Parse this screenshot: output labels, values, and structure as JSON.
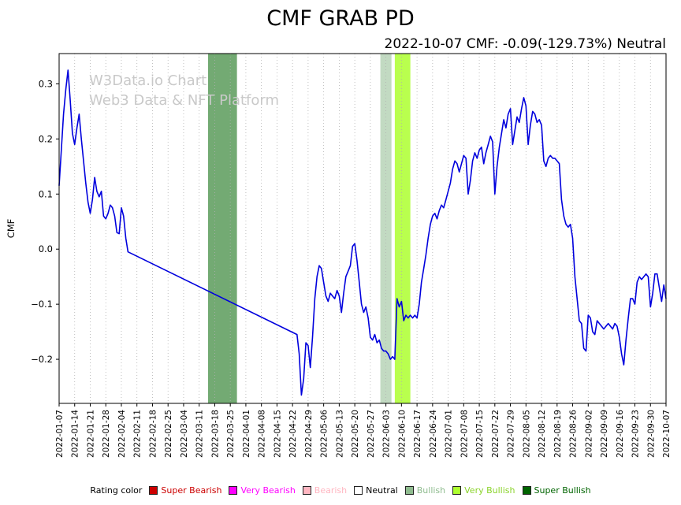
{
  "header": {
    "title": "CMF GRAB PD",
    "subtitle": "2022-10-07 CMF: -0.09(-129.73%) Neutral"
  },
  "watermark": {
    "line1": "W3Data.io Chart",
    "line2": "Web3 Data & NFT Platform",
    "color": "#c9c9c9"
  },
  "legend": {
    "label": "Rating color",
    "items": [
      {
        "label": "Super Bearish",
        "color": "#cc0000",
        "text_color": "#cc0000"
      },
      {
        "label": "Very Bearish",
        "color": "#ff00ff",
        "text_color": "#ff00ff"
      },
      {
        "label": "Bearish",
        "color": "#ffb6c1",
        "text_color": "#ffb6c1"
      },
      {
        "label": "Neutral",
        "color": "#ffffff",
        "text_color": "#000000"
      },
      {
        "label": "Bullish",
        "color": "#8fbc8f",
        "text_color": "#8fbc8f"
      },
      {
        "label": "Very Bullish",
        "color": "#adff2f",
        "text_color": "#8ad32a"
      },
      {
        "label": "Super Bullish",
        "color": "#006400",
        "text_color": "#006400"
      }
    ]
  },
  "chart_data": {
    "type": "line",
    "title": "CMF GRAB PD",
    "xlabel": "",
    "ylabel": "CMF",
    "line_color": "#0000dd",
    "grid": "vertical-dotted",
    "grid_color": "#b0b0b0",
    "ylim": [
      -0.28,
      0.355
    ],
    "y_ticks": [
      0.3,
      0.2,
      0.1,
      0.0,
      -0.1,
      -0.2
    ],
    "y_tick_labels": [
      "0.3",
      "0.2",
      "0.1",
      "0.0",
      "−0.1",
      "−0.2"
    ],
    "x_tick_interval_days": 7,
    "x_tick_labels": [
      "2022-01-07",
      "2022-01-14",
      "2022-01-21",
      "2022-01-28",
      "2022-02-04",
      "2022-02-11",
      "2022-02-18",
      "2022-02-25",
      "2022-03-04",
      "2022-03-11",
      "2022-03-18",
      "2022-03-25",
      "2022-04-01",
      "2022-04-08",
      "2022-04-15",
      "2022-04-22",
      "2022-04-29",
      "2022-05-06",
      "2022-05-13",
      "2022-05-20",
      "2022-05-27",
      "2022-06-03",
      "2022-06-10",
      "2022-06-17",
      "2022-06-24",
      "2022-07-01",
      "2022-07-08",
      "2022-07-15",
      "2022-07-22",
      "2022-07-29",
      "2022-08-05",
      "2022-08-12",
      "2022-08-19",
      "2022-08-26",
      "2022-09-02",
      "2022-09-09",
      "2022-09-16",
      "2022-09-23",
      "2022-09-30",
      "2022-10-07"
    ],
    "bands": [
      {
        "rating": "Super Bullish",
        "from_day": 67,
        "to_day": 80,
        "color": "rgba(0,100,0,0.55)"
      },
      {
        "rating": "Bullish",
        "from_day": 144.5,
        "to_day": 149.5,
        "color": "rgba(143,188,143,0.55)"
      },
      {
        "rating": "Very Bullish",
        "from_day": 151,
        "to_day": 158,
        "color": "rgba(173,255,47,0.85)"
      }
    ],
    "series": [
      {
        "name": "CMF",
        "points": [
          [
            0,
            0.115
          ],
          [
            1,
            0.18
          ],
          [
            2,
            0.245
          ],
          [
            3,
            0.29
          ],
          [
            4,
            0.325
          ],
          [
            5,
            0.27
          ],
          [
            6,
            0.21
          ],
          [
            7,
            0.19
          ],
          [
            8,
            0.22
          ],
          [
            9,
            0.245
          ],
          [
            10,
            0.2
          ],
          [
            11,
            0.16
          ],
          [
            12,
            0.12
          ],
          [
            13,
            0.085
          ],
          [
            14,
            0.065
          ],
          [
            15,
            0.09
          ],
          [
            16,
            0.13
          ],
          [
            17,
            0.105
          ],
          [
            18,
            0.095
          ],
          [
            19,
            0.105
          ],
          [
            20,
            0.06
          ],
          [
            21,
            0.055
          ],
          [
            22,
            0.065
          ],
          [
            23,
            0.08
          ],
          [
            24,
            0.075
          ],
          [
            25,
            0.06
          ],
          [
            26,
            0.03
          ],
          [
            27,
            0.028
          ],
          [
            28,
            0.075
          ],
          [
            29,
            0.06
          ],
          [
            30,
            0.02
          ],
          [
            31,
            -0.005
          ],
          [
            107,
            -0.155
          ],
          [
            108,
            -0.19
          ],
          [
            109,
            -0.265
          ],
          [
            110,
            -0.235
          ],
          [
            111,
            -0.17
          ],
          [
            112,
            -0.175
          ],
          [
            113,
            -0.215
          ],
          [
            114,
            -0.16
          ],
          [
            115,
            -0.09
          ],
          [
            116,
            -0.05
          ],
          [
            117,
            -0.03
          ],
          [
            118,
            -0.035
          ],
          [
            119,
            -0.06
          ],
          [
            120,
            -0.085
          ],
          [
            121,
            -0.095
          ],
          [
            122,
            -0.08
          ],
          [
            123,
            -0.085
          ],
          [
            124,
            -0.09
          ],
          [
            125,
            -0.075
          ],
          [
            126,
            -0.085
          ],
          [
            127,
            -0.115
          ],
          [
            128,
            -0.08
          ],
          [
            129,
            -0.05
          ],
          [
            130,
            -0.04
          ],
          [
            131,
            -0.03
          ],
          [
            132,
            0.005
          ],
          [
            133,
            0.01
          ],
          [
            134,
            -0.02
          ],
          [
            135,
            -0.06
          ],
          [
            136,
            -0.1
          ],
          [
            137,
            -0.115
          ],
          [
            138,
            -0.105
          ],
          [
            139,
            -0.125
          ],
          [
            140,
            -0.16
          ],
          [
            141,
            -0.165
          ],
          [
            142,
            -0.155
          ],
          [
            143,
            -0.17
          ],
          [
            144,
            -0.165
          ],
          [
            145,
            -0.18
          ],
          [
            146,
            -0.185
          ],
          [
            147,
            -0.185
          ],
          [
            148,
            -0.19
          ],
          [
            149,
            -0.2
          ],
          [
            150,
            -0.195
          ],
          [
            151,
            -0.2
          ],
          [
            152,
            -0.09
          ],
          [
            153,
            -0.105
          ],
          [
            154,
            -0.095
          ],
          [
            155,
            -0.13
          ],
          [
            156,
            -0.12
          ],
          [
            157,
            -0.125
          ],
          [
            158,
            -0.12
          ],
          [
            159,
            -0.125
          ],
          [
            160,
            -0.12
          ],
          [
            161,
            -0.125
          ],
          [
            162,
            -0.1
          ],
          [
            163,
            -0.06
          ],
          [
            164,
            -0.035
          ],
          [
            165,
            -0.01
          ],
          [
            166,
            0.02
          ],
          [
            167,
            0.045
          ],
          [
            168,
            0.06
          ],
          [
            169,
            0.065
          ],
          [
            170,
            0.055
          ],
          [
            171,
            0.07
          ],
          [
            172,
            0.08
          ],
          [
            173,
            0.075
          ],
          [
            174,
            0.09
          ],
          [
            175,
            0.105
          ],
          [
            176,
            0.12
          ],
          [
            177,
            0.145
          ],
          [
            178,
            0.16
          ],
          [
            179,
            0.155
          ],
          [
            180,
            0.14
          ],
          [
            181,
            0.155
          ],
          [
            182,
            0.17
          ],
          [
            183,
            0.165
          ],
          [
            184,
            0.1
          ],
          [
            185,
            0.125
          ],
          [
            186,
            0.16
          ],
          [
            187,
            0.175
          ],
          [
            188,
            0.165
          ],
          [
            189,
            0.18
          ],
          [
            190,
            0.185
          ],
          [
            191,
            0.155
          ],
          [
            192,
            0.175
          ],
          [
            193,
            0.19
          ],
          [
            194,
            0.205
          ],
          [
            195,
            0.195
          ],
          [
            196,
            0.1
          ],
          [
            197,
            0.15
          ],
          [
            198,
            0.185
          ],
          [
            199,
            0.21
          ],
          [
            200,
            0.235
          ],
          [
            201,
            0.22
          ],
          [
            202,
            0.245
          ],
          [
            203,
            0.255
          ],
          [
            204,
            0.19
          ],
          [
            205,
            0.215
          ],
          [
            206,
            0.24
          ],
          [
            207,
            0.23
          ],
          [
            208,
            0.255
          ],
          [
            209,
            0.275
          ],
          [
            210,
            0.26
          ],
          [
            211,
            0.19
          ],
          [
            212,
            0.225
          ],
          [
            213,
            0.25
          ],
          [
            214,
            0.245
          ],
          [
            215,
            0.23
          ],
          [
            216,
            0.235
          ],
          [
            217,
            0.225
          ],
          [
            218,
            0.16
          ],
          [
            219,
            0.15
          ],
          [
            220,
            0.165
          ],
          [
            221,
            0.17
          ],
          [
            222,
            0.165
          ],
          [
            223,
            0.165
          ],
          [
            224,
            0.16
          ],
          [
            225,
            0.155
          ],
          [
            226,
            0.09
          ],
          [
            227,
            0.06
          ],
          [
            228,
            0.045
          ],
          [
            229,
            0.04
          ],
          [
            230,
            0.045
          ],
          [
            231,
            0.02
          ],
          [
            232,
            -0.05
          ],
          [
            233,
            -0.09
          ],
          [
            234,
            -0.13
          ],
          [
            235,
            -0.135
          ],
          [
            236,
            -0.18
          ],
          [
            237,
            -0.185
          ],
          [
            238,
            -0.12
          ],
          [
            239,
            -0.125
          ],
          [
            240,
            -0.15
          ],
          [
            241,
            -0.155
          ],
          [
            242,
            -0.13
          ],
          [
            243,
            -0.135
          ],
          [
            244,
            -0.14
          ],
          [
            245,
            -0.145
          ],
          [
            246,
            -0.14
          ],
          [
            247,
            -0.135
          ],
          [
            248,
            -0.14
          ],
          [
            249,
            -0.145
          ],
          [
            250,
            -0.135
          ],
          [
            251,
            -0.14
          ],
          [
            252,
            -0.16
          ],
          [
            253,
            -0.19
          ],
          [
            254,
            -0.21
          ],
          [
            255,
            -0.165
          ],
          [
            256,
            -0.125
          ],
          [
            257,
            -0.09
          ],
          [
            258,
            -0.09
          ],
          [
            259,
            -0.1
          ],
          [
            260,
            -0.06
          ],
          [
            261,
            -0.05
          ],
          [
            262,
            -0.055
          ],
          [
            263,
            -0.05
          ],
          [
            264,
            -0.045
          ],
          [
            265,
            -0.05
          ],
          [
            266,
            -0.105
          ],
          [
            267,
            -0.08
          ],
          [
            268,
            -0.045
          ],
          [
            269,
            -0.045
          ],
          [
            270,
            -0.07
          ],
          [
            271,
            -0.095
          ],
          [
            272,
            -0.065
          ],
          [
            273,
            -0.09
          ]
        ]
      }
    ]
  }
}
